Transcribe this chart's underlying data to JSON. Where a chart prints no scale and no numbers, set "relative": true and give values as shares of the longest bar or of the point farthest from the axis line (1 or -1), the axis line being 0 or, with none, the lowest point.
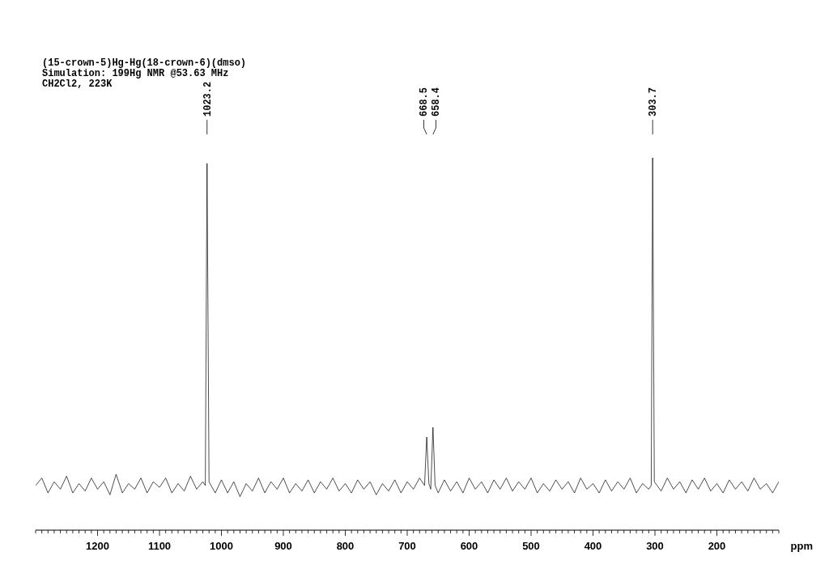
{
  "chart_data": {
    "type": "line",
    "title": "(15-crown-5)Hg-Hg(18-crown-6)(dmso)",
    "subtitle": "Simulation: 199Hg NMR @53.63 MHz",
    "xlabel": "ppm",
    "relative": true,
    "annotations": [
      "CH2Cl2, 223K",
      {
        "text": "1023.2",
        "x": 1023.2
      },
      {
        "text": "668.5",
        "x": 668.5
      },
      {
        "text": "658.4",
        "x": 658.4
      },
      {
        "text": "303.7",
        "x": 303.7
      }
    ],
    "xlim": [
      1300,
      100
    ],
    "xticks": [
      {
        "value": 1300,
        "label": null
      },
      {
        "value": 1290,
        "label": null
      },
      {
        "value": 1280,
        "label": null
      },
      {
        "value": 1270,
        "label": null
      },
      {
        "value": 1260,
        "label": null
      },
      {
        "value": 1250,
        "label": null
      },
      {
        "value": 1240,
        "label": null
      },
      {
        "value": 1230,
        "label": null
      },
      {
        "value": 1220,
        "label": null
      },
      {
        "value": 1210,
        "label": null
      },
      1200,
      {
        "value": 1190,
        "label": null
      },
      {
        "value": 1180,
        "label": null
      },
      {
        "value": 1170,
        "label": null
      },
      {
        "value": 1160,
        "label": null
      },
      {
        "value": 1150,
        "label": null
      },
      {
        "value": 1140,
        "label": null
      },
      {
        "value": 1130,
        "label": null
      },
      {
        "value": 1120,
        "label": null
      },
      {
        "value": 1110,
        "label": null
      },
      1100,
      {
        "value": 1090,
        "label": null
      },
      {
        "value": 1080,
        "label": null
      },
      {
        "value": 1070,
        "label": null
      },
      {
        "value": 1060,
        "label": null
      },
      {
        "value": 1050,
        "label": null
      },
      {
        "value": 1040,
        "label": null
      },
      {
        "value": 1030,
        "label": null
      },
      {
        "value": 1020,
        "label": null
      },
      {
        "value": 1010,
        "label": null
      },
      1000,
      {
        "value": 990,
        "label": null
      },
      {
        "value": 980,
        "label": null
      },
      {
        "value": 970,
        "label": null
      },
      {
        "value": 960,
        "label": null
      },
      {
        "value": 950,
        "label": null
      },
      {
        "value": 940,
        "label": null
      },
      {
        "value": 930,
        "label": null
      },
      {
        "value": 920,
        "label": null
      },
      {
        "value": 910,
        "label": null
      },
      900,
      {
        "value": 890,
        "label": null
      },
      {
        "value": 880,
        "label": null
      },
      {
        "value": 870,
        "label": null
      },
      {
        "value": 860,
        "label": null
      },
      {
        "value": 850,
        "label": null
      },
      {
        "value": 840,
        "label": null
      },
      {
        "value": 830,
        "label": null
      },
      {
        "value": 820,
        "label": null
      },
      {
        "value": 810,
        "label": null
      },
      800,
      {
        "value": 790,
        "label": null
      },
      {
        "value": 780,
        "label": null
      },
      {
        "value": 770,
        "label": null
      },
      {
        "value": 760,
        "label": null
      },
      {
        "value": 750,
        "label": null
      },
      {
        "value": 740,
        "label": null
      },
      {
        "value": 730,
        "label": null
      },
      {
        "value": 720,
        "label": null
      },
      {
        "value": 710,
        "label": null
      },
      700,
      {
        "value": 690,
        "label": null
      },
      {
        "value": 680,
        "label": null
      },
      {
        "value": 670,
        "label": null
      },
      {
        "value": 660,
        "label": null
      },
      {
        "value": 650,
        "label": null
      },
      {
        "value": 640,
        "label": null
      },
      {
        "value": 630,
        "label": null
      },
      {
        "value": 620,
        "label": null
      },
      {
        "value": 610,
        "label": null
      },
      600,
      {
        "value": 590,
        "label": null
      },
      {
        "value": 580,
        "label": null
      },
      {
        "value": 570,
        "label": null
      },
      {
        "value": 560,
        "label": null
      },
      {
        "value": 550,
        "label": null
      },
      {
        "value": 540,
        "label": null
      },
      {
        "value": 530,
        "label": null
      },
      {
        "value": 520,
        "label": null
      },
      {
        "value": 510,
        "label": null
      },
      500,
      {
        "value": 490,
        "label": null
      },
      {
        "value": 480,
        "label": null
      },
      {
        "value": 470,
        "label": null
      },
      {
        "value": 460,
        "label": null
      },
      {
        "value": 450,
        "label": null
      },
      {
        "value": 440,
        "label": null
      },
      {
        "value": 430,
        "label": null
      },
      {
        "value": 420,
        "label": null
      },
      {
        "value": 410,
        "label": null
      },
      400,
      {
        "value": 390,
        "label": null
      },
      {
        "value": 380,
        "label": null
      },
      {
        "value": 370,
        "label": null
      },
      {
        "value": 360,
        "label": null
      },
      {
        "value": 350,
        "label": null
      },
      {
        "value": 340,
        "label": null
      },
      {
        "value": 330,
        "label": null
      },
      {
        "value": 320,
        "label": null
      },
      {
        "value": 310,
        "label": null
      },
      300,
      {
        "value": 290,
        "label": null
      },
      {
        "value": 280,
        "label": null
      },
      {
        "value": 270,
        "label": null
      },
      {
        "value": 260,
        "label": null
      },
      {
        "value": 250,
        "label": null
      },
      {
        "value": 240,
        "label": null
      },
      {
        "value": 230,
        "label": null
      },
      {
        "value": 220,
        "label": null
      },
      {
        "value": 210,
        "label": null
      },
      200,
      {
        "value": 190,
        "label": null
      },
      {
        "value": 180,
        "label": null
      },
      {
        "value": 170,
        "label": null
      },
      {
        "value": 160,
        "label": null
      },
      {
        "value": 150,
        "label": null
      },
      {
        "value": 140,
        "label": null
      },
      {
        "value": 130,
        "label": null
      },
      {
        "value": 120,
        "label": null
      },
      {
        "value": 110,
        "label": null
      },
      {
        "value": 100,
        "label": null
      }
    ],
    "series": [
      {
        "color": "#000000",
        "x": [
          1300,
          1290,
          1280,
          1270,
          1260,
          1250,
          1240,
          1230,
          1220,
          1210,
          1200,
          1190,
          1180,
          1170,
          1160,
          1150,
          1140,
          1130,
          1120,
          1110,
          1100,
          1090,
          1080,
          1070,
          1060,
          1050,
          1040,
          1030,
          1026,
          1023.2,
          1020,
          1010,
          1000,
          990,
          980,
          970,
          960,
          950,
          940,
          930,
          920,
          910,
          900,
          890,
          880,
          870,
          860,
          850,
          840,
          830,
          820,
          810,
          800,
          790,
          780,
          770,
          760,
          750,
          740,
          730,
          720,
          710,
          700,
          690,
          680,
          672,
          668.5,
          665,
          662,
          658.4,
          655,
          650,
          640,
          630,
          620,
          610,
          600,
          590,
          580,
          570,
          560,
          550,
          540,
          530,
          520,
          510,
          500,
          490,
          480,
          470,
          460,
          450,
          440,
          430,
          420,
          410,
          400,
          390,
          380,
          370,
          360,
          350,
          340,
          330,
          320,
          310,
          306,
          303.7,
          301,
          290,
          280,
          270,
          260,
          250,
          240,
          230,
          220,
          210,
          200,
          190,
          180,
          170,
          160,
          150,
          140,
          130,
          120,
          110,
          100
        ],
        "values": [
          0.12,
          0.14,
          0.1,
          0.13,
          0.11,
          0.145,
          0.1,
          0.125,
          0.105,
          0.14,
          0.11,
          0.13,
          0.095,
          0.15,
          0.1,
          0.125,
          0.11,
          0.14,
          0.1,
          0.13,
          0.115,
          0.14,
          0.1,
          0.125,
          0.105,
          0.145,
          0.11,
          0.13,
          0.12,
          0.985,
          0.13,
          0.1,
          0.135,
          0.1,
          0.13,
          0.09,
          0.125,
          0.105,
          0.14,
          0.1,
          0.13,
          0.11,
          0.14,
          0.1,
          0.125,
          0.105,
          0.135,
          0.1,
          0.13,
          0.11,
          0.14,
          0.105,
          0.125,
          0.1,
          0.135,
          0.11,
          0.13,
          0.095,
          0.125,
          0.105,
          0.135,
          0.1,
          0.13,
          0.11,
          0.14,
          0.12,
          0.25,
          0.125,
          0.11,
          0.276,
          0.12,
          0.1,
          0.135,
          0.105,
          0.13,
          0.1,
          0.14,
          0.11,
          0.13,
          0.1,
          0.135,
          0.11,
          0.14,
          0.105,
          0.13,
          0.11,
          0.14,
          0.1,
          0.125,
          0.105,
          0.135,
          0.11,
          0.13,
          0.1,
          0.14,
          0.11,
          0.125,
          0.1,
          0.135,
          0.105,
          0.13,
          0.11,
          0.14,
          0.1,
          0.125,
          0.11,
          0.12,
          1,
          0.13,
          0.105,
          0.14,
          0.11,
          0.13,
          0.1,
          0.135,
          0.11,
          0.14,
          0.105,
          0.125,
          0.1,
          0.135,
          0.11,
          0.13,
          0.105,
          0.14,
          0.11,
          0.125,
          0.1,
          0.13
        ]
      }
    ]
  }
}
